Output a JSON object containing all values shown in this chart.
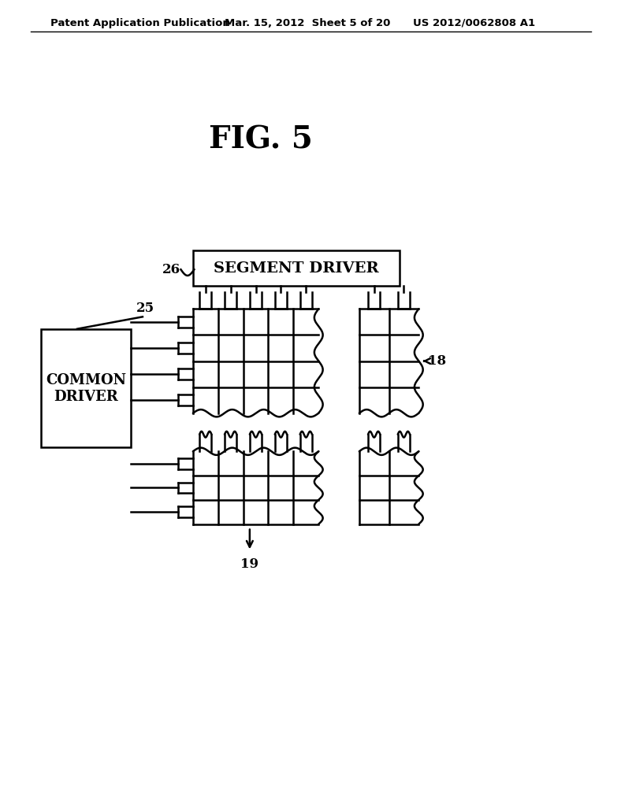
{
  "bg_color": "#ffffff",
  "header_left": "Patent Application Publication",
  "header_mid": "Mar. 15, 2012  Sheet 5 of 20",
  "header_right": "US 2012/0062808 A1",
  "fig_label": "FIG. 5",
  "label_segment_driver": "SEGMENT DRIVER",
  "label_common_driver": "COMMON\nDRIVER",
  "label_26": "26",
  "label_25": "25",
  "label_18": "18",
  "label_19": "19",
  "line_color": "#000000",
  "text_color": "#000000",
  "lw": 1.8
}
